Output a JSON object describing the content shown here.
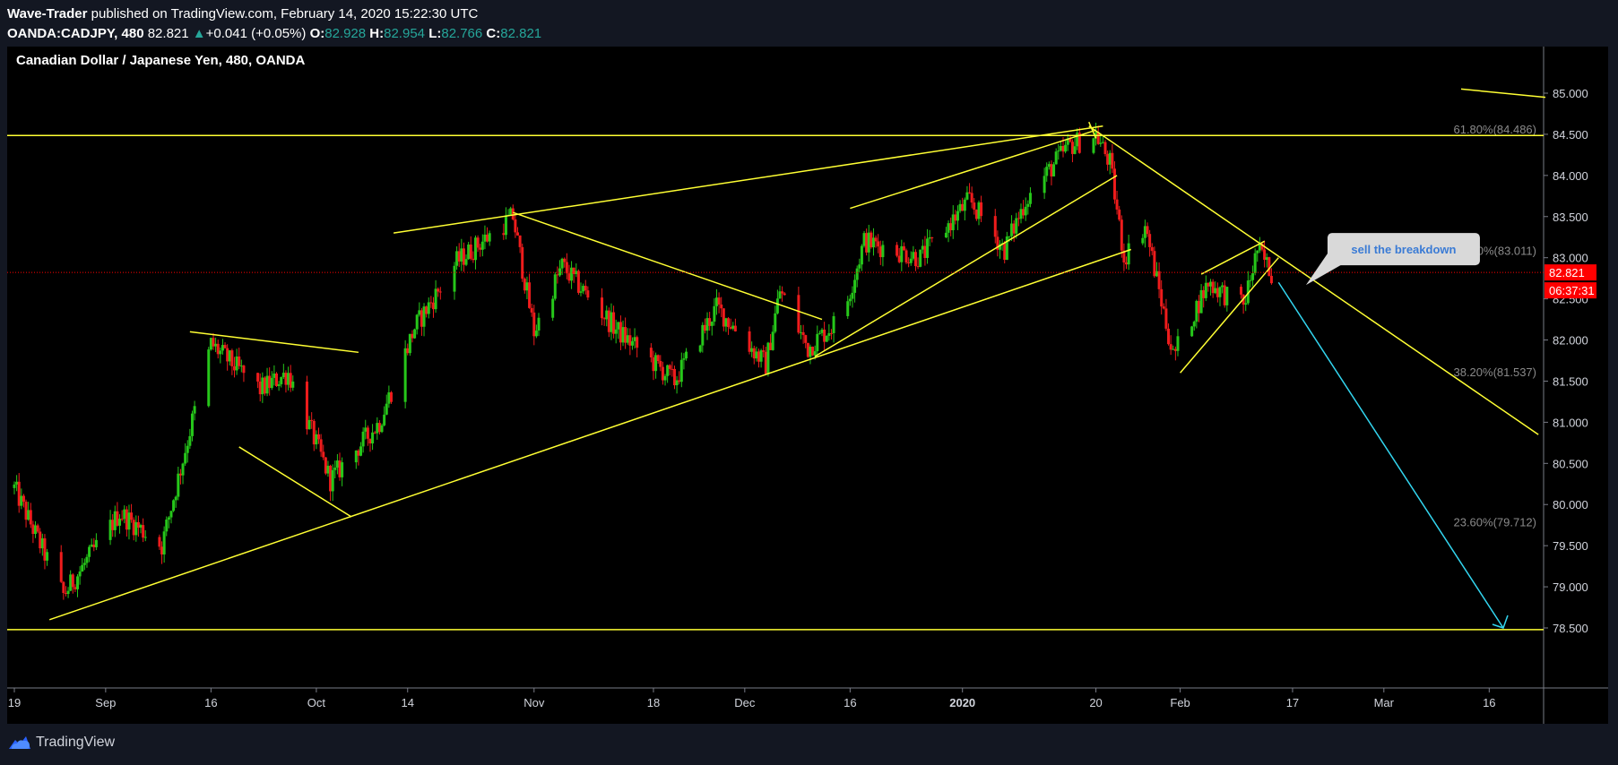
{
  "header": {
    "author": "Wave-Trader",
    "published": "published on TradingView.com, February 14, 2020 15:22:30 UTC",
    "symbol": "OANDA:CADJPY, 480",
    "last": "82.821",
    "change_arrow": "▲",
    "change": "+0.041 (+0.05%)",
    "o_label": "O:",
    "o_value": "82.928",
    "h_label": "H:",
    "h_value": "82.954",
    "l_label": "L:",
    "l_value": "82.766",
    "c_label": "C:",
    "c_value": "82.821"
  },
  "footer": {
    "brand": "TradingView"
  },
  "colors": {
    "up": "#26c71a",
    "down": "#ef1c1c",
    "drawing": "#ffff33",
    "projection": "#33d6f0",
    "price_tag": "#ff0000",
    "fib_text": "#8a8a8a",
    "axis_text": "#d1d4dc"
  },
  "chart_data": {
    "type": "candlestick",
    "title": "Canadian Dollar / Japanese Yen, 480, OANDA",
    "ylim": [
      78.3,
      85.1
    ],
    "y_ticks": [
      "85.000",
      "84.500",
      "84.000",
      "83.500",
      "83.000",
      "82.500",
      "82.000",
      "81.500",
      "81.000",
      "80.500",
      "80.000",
      "79.500",
      "79.000",
      "78.500"
    ],
    "x_ticks": [
      "19",
      "Sep",
      "16",
      "Oct",
      "14",
      "Nov",
      "18",
      "Dec",
      "16",
      "2020",
      "20",
      "Feb",
      "17",
      "Mar",
      "16"
    ],
    "x_range": [
      "2019-08-19",
      "2020-03-24"
    ],
    "current_price": {
      "value": 82.821,
      "label": "82.821",
      "countdown": "06:37:31"
    },
    "fib_levels": [
      {
        "label": "61.80%(84.486)",
        "value": 84.486
      },
      {
        "label": "00%(83.011)",
        "value": 83.011
      },
      {
        "label": "38.20%(81.537)",
        "value": 81.537
      },
      {
        "label": "23.60%(79.712)",
        "value": 79.712
      }
    ],
    "annotation": {
      "text": "sell the breakdown"
    },
    "pivots": [
      {
        "t": "2019-08-19",
        "p": 80.2
      },
      {
        "t": "2019-08-26",
        "p": 78.9
      },
      {
        "t": "2019-09-03",
        "p": 79.9
      },
      {
        "t": "2019-09-09",
        "p": 79.5
      },
      {
        "t": "2019-09-16",
        "p": 81.95
      },
      {
        "t": "2019-09-23",
        "p": 81.4
      },
      {
        "t": "2019-09-27",
        "p": 81.6
      },
      {
        "t": "2019-10-03",
        "p": 80.3
      },
      {
        "t": "2019-10-10",
        "p": 81.0
      },
      {
        "t": "2019-10-15",
        "p": 82.15
      },
      {
        "t": "2019-10-21",
        "p": 82.95
      },
      {
        "t": "2019-10-29",
        "p": 83.5
      },
      {
        "t": "2019-11-01",
        "p": 82.1
      },
      {
        "t": "2019-11-05",
        "p": 82.9
      },
      {
        "t": "2019-11-13",
        "p": 82.1
      },
      {
        "t": "2019-11-21",
        "p": 81.5
      },
      {
        "t": "2019-11-27",
        "p": 82.4
      },
      {
        "t": "2019-12-04",
        "p": 81.7
      },
      {
        "t": "2019-12-06",
        "p": 82.6
      },
      {
        "t": "2019-12-10",
        "p": 81.9
      },
      {
        "t": "2019-12-15",
        "p": 82.3
      },
      {
        "t": "2019-12-18",
        "p": 83.2
      },
      {
        "t": "2019-12-26",
        "p": 83.0
      },
      {
        "t": "2020-01-02",
        "p": 83.7
      },
      {
        "t": "2020-01-07",
        "p": 83.1
      },
      {
        "t": "2020-01-10",
        "p": 83.7
      },
      {
        "t": "2020-01-16",
        "p": 84.35
      },
      {
        "t": "2020-01-20",
        "p": 84.5
      },
      {
        "t": "2020-01-22",
        "p": 84.15
      },
      {
        "t": "2020-01-24",
        "p": 83.0
      },
      {
        "t": "2020-01-27",
        "p": 83.4
      },
      {
        "t": "2020-01-29",
        "p": 82.6
      },
      {
        "t": "2020-01-31",
        "p": 81.8
      },
      {
        "t": "2020-02-05",
        "p": 82.7
      },
      {
        "t": "2020-02-10",
        "p": 82.4
      },
      {
        "t": "2020-02-12",
        "p": 83.1
      },
      {
        "t": "2020-02-14",
        "p": 82.82
      }
    ],
    "drawings": [
      {
        "kind": "hline",
        "p": 84.486
      },
      {
        "kind": "hline",
        "p": 78.48
      },
      {
        "kind": "trend",
        "t1": "2019-08-24",
        "p1": 78.6,
        "t2": "2020-01-25",
        "p2": 83.1
      },
      {
        "kind": "trend",
        "t1": "2019-10-12",
        "p1": 83.3,
        "t2": "2020-01-21",
        "p2": 84.6
      },
      {
        "kind": "trend",
        "t1": "2019-10-29",
        "p1": 83.55,
        "t2": "2019-12-12",
        "p2": 82.25
      },
      {
        "kind": "trend",
        "t1": "2019-09-13",
        "p1": 82.1,
        "t2": "2019-10-07",
        "p2": 81.85
      },
      {
        "kind": "trend",
        "t1": "2019-09-20",
        "p1": 80.7,
        "t2": "2019-10-06",
        "p2": 79.85
      },
      {
        "kind": "trend",
        "t1": "2019-12-11",
        "p1": 81.8,
        "t2": "2020-01-23",
        "p2": 84.0
      },
      {
        "kind": "trend",
        "t1": "2019-12-16",
        "p1": 83.6,
        "t2": "2020-01-20",
        "p2": 84.55
      },
      {
        "kind": "trend",
        "t1": "2020-01-19",
        "p1": 84.6,
        "t2": "2020-03-23",
        "p2": 80.85
      },
      {
        "kind": "trend",
        "t1": "2020-01-19",
        "p1": 84.65,
        "t2": "2020-01-20",
        "p2": 84.45
      },
      {
        "kind": "trend",
        "t1": "2020-02-01",
        "p1": 81.6,
        "t2": "2020-02-15",
        "p2": 83.0
      },
      {
        "kind": "trend",
        "t1": "2020-02-04",
        "p1": 82.8,
        "t2": "2020-02-13",
        "p2": 83.2
      },
      {
        "kind": "trend",
        "t1": "2020-03-12",
        "p1": 85.05,
        "t2": "2020-03-24",
        "p2": 84.95
      }
    ],
    "projection": {
      "t1": "2020-02-15",
      "p1": 82.7,
      "t2": "2020-03-18",
      "p2": 78.5
    }
  }
}
